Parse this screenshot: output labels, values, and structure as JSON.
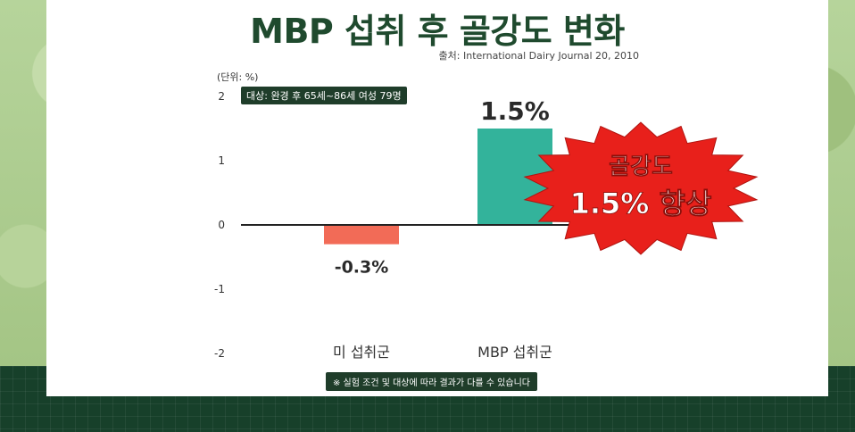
{
  "page": {
    "title": "MBP 섭취 후 골강도 변화",
    "source": "출처: International Dairy Journal 20, 2010",
    "unit_label": "(단위: %)",
    "subject_note": "대상: 완경 후 65세~86세 여성 79명",
    "footnote": "※ 실험 조건 및 대상에 따라 결과가 다를 수 있습니다"
  },
  "callout": {
    "line1": "골강도",
    "line2": "1.5% 향상",
    "color": "#e8201b"
  },
  "colors": {
    "negative_bar": "#f26b57",
    "positive_bar": "#33b39b",
    "title": "#1f4a2e",
    "dark_label_bg": "#1f3d2a"
  },
  "chart_data": {
    "type": "bar",
    "categories": [
      "미 섭취군",
      "MBP 섭취군"
    ],
    "values": [
      -0.3,
      1.5
    ],
    "value_labels": [
      "-0.3%",
      "1.5%"
    ],
    "ylim": [
      -2,
      2
    ],
    "yticks": [
      2,
      1,
      0,
      -1,
      -2
    ],
    "ylabel": "(단위: %)",
    "grid": false
  }
}
